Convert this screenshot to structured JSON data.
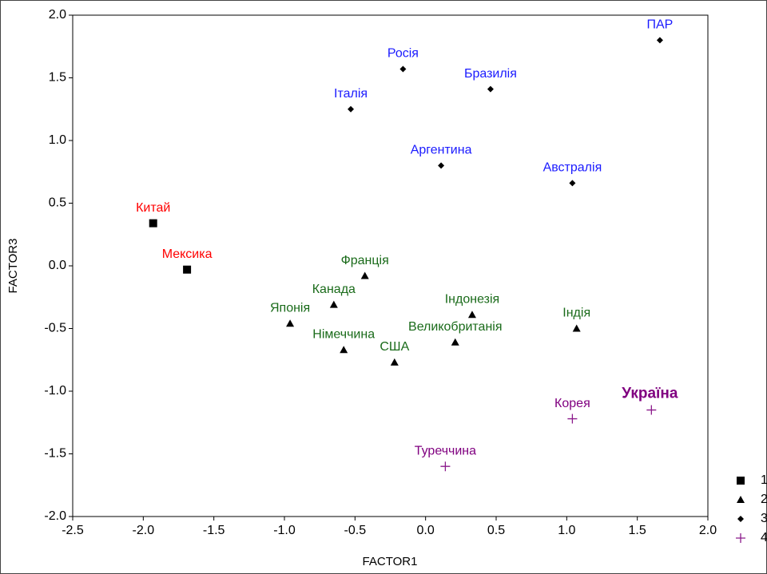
{
  "chart_data": {
    "type": "scatter",
    "xlabel": "FACTOR1",
    "ylabel": "FACTOR3",
    "xlim": [
      -2.5,
      2.0
    ],
    "ylim": [
      -2.0,
      2.0
    ],
    "xticks": [
      -2.5,
      {
        "value": -2,
        "label": "-2.0"
      },
      -1.5,
      {
        "value": -1,
        "label": "-1.0"
      },
      -0.5,
      {
        "value": 0,
        "label": "0.0"
      },
      0.5,
      {
        "value": 1,
        "label": "1.0"
      },
      1.5,
      {
        "value": 2,
        "label": "2.0"
      }
    ],
    "yticks": [
      {
        "value": -2,
        "label": "-2.0"
      },
      -1.5,
      {
        "value": -1,
        "label": "-1.0"
      },
      -0.5,
      {
        "value": 0,
        "label": "0.0"
      },
      0.5,
      {
        "value": 1,
        "label": "1.0"
      },
      1.5,
      {
        "value": 2,
        "label": "2.0"
      }
    ],
    "grid": false,
    "legend": "right",
    "series": [
      {
        "name": "1",
        "marker": "square",
        "color": "#000000",
        "label_color": "#ff0000",
        "labels": [
          "Китай",
          "Мексика"
        ],
        "x": [
          -1.93,
          -1.69
        ],
        "values": [
          0.34,
          -0.03
        ]
      },
      {
        "name": "2",
        "marker": "triangle",
        "color": "#000000",
        "label_color": "#1a6b1a",
        "labels": [
          "Франція",
          "Канада",
          "Японія",
          "Німеччина",
          "США",
          "Індонезія",
          "Великобританія",
          "Індія"
        ],
        "x": [
          -0.43,
          -0.65,
          -0.96,
          -0.58,
          -0.22,
          0.33,
          0.21,
          1.07
        ],
        "values": [
          -0.08,
          -0.31,
          -0.46,
          -0.67,
          -0.77,
          -0.39,
          -0.61,
          -0.5
        ]
      },
      {
        "name": "3",
        "marker": "diamond",
        "color": "#000000",
        "label_color": "#1a1aff",
        "labels": [
          "Росія",
          "Бразилія",
          "Італія",
          "ПАР",
          "Аргентина",
          "Австралія"
        ],
        "x": [
          -0.16,
          0.46,
          -0.53,
          1.66,
          0.11,
          1.04
        ],
        "values": [
          1.57,
          1.41,
          1.25,
          1.8,
          0.8,
          0.66
        ]
      },
      {
        "name": "4",
        "marker": "plus",
        "color": "#8b1a8b",
        "label_color": "#800080",
        "labels": [
          "Туреччина",
          "Корея",
          "Україна"
        ],
        "bold": [
          false,
          false,
          true
        ],
        "x": [
          0.14,
          1.04,
          1.6
        ],
        "values": [
          -1.6,
          -1.22,
          -1.15
        ]
      }
    ]
  }
}
